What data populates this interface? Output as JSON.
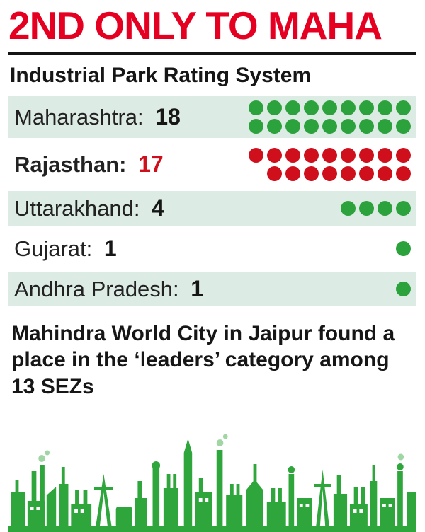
{
  "header": {
    "title": "2ND ONLY TO MAHA"
  },
  "subtitle": "Industrial Park Rating System",
  "footnote": "Mahindra World City in Jaipur found a place in the ‘leaders’ category among 13 SEZs",
  "colors": {
    "headline_red": "#e50021",
    "dot_green": "#2ca23c",
    "dot_red": "#cf101c",
    "row_band": "#dcebe3",
    "text": "#161616",
    "skyline_green": "#2fa63c"
  },
  "chart_data": {
    "type": "bar",
    "subtype": "pictogram",
    "title": "Industrial Park Rating System",
    "categories": [
      "Maharashtra",
      "Rajasthan",
      "Uttarakhand",
      "Gujarat",
      "Andhra Pradesh"
    ],
    "values": [
      18,
      17,
      4,
      1,
      1
    ],
    "dot_colors": [
      "#2ca23c",
      "#cf101c",
      "#2ca23c",
      "#2ca23c",
      "#2ca23c"
    ],
    "value_colors": [
      "#161616",
      "#cf101c",
      "#161616",
      "#161616",
      "#161616"
    ],
    "label_bold": [
      false,
      true,
      false,
      false,
      false
    ],
    "banded_rows": [
      0,
      2,
      4
    ],
    "max_dots_per_row": 9,
    "legend": "off",
    "xlabel": "",
    "ylabel": ""
  }
}
